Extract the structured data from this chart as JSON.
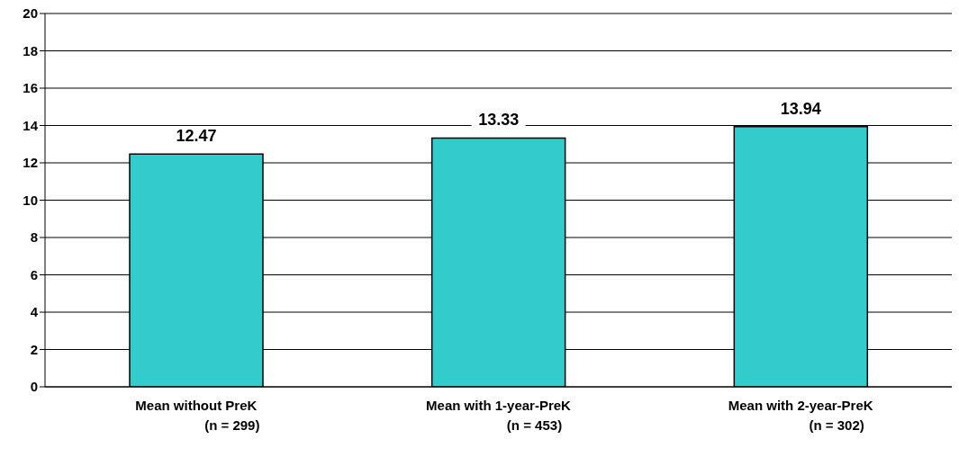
{
  "chart_data": {
    "type": "bar",
    "categories": [
      "Mean without PreK\n(n = 299)",
      "Mean with 1-year-PreK\n(n = 453)",
      "Mean with 2-year-PreK\n(n = 302)"
    ],
    "values": [
      12.47,
      13.33,
      13.94
    ],
    "color": "#33cccc",
    "ylim": [
      0,
      20
    ],
    "yticks": [
      0,
      2,
      4,
      6,
      8,
      10,
      12,
      14,
      16,
      18,
      20
    ],
    "grid": "y",
    "data_labels": true
  }
}
